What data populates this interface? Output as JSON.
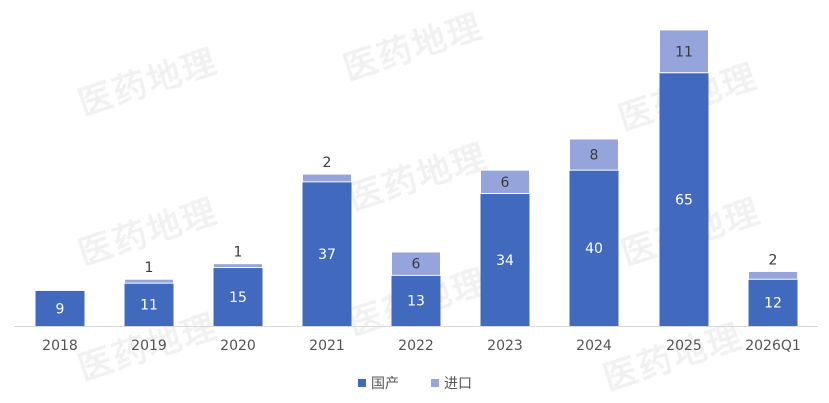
{
  "watermark": "医药地理",
  "chart_data": {
    "type": "bar",
    "stacked": true,
    "categories": [
      "2018",
      "2019",
      "2020",
      "2021",
      "2022",
      "2023",
      "2024",
      "2025",
      "2026Q1"
    ],
    "series": [
      {
        "name": "国产",
        "color": "#4169BE",
        "values": [
          9,
          11,
          15,
          37,
          13,
          34,
          40,
          65,
          12
        ]
      },
      {
        "name": "进口",
        "color": "#95A5DC",
        "values": [
          0,
          1,
          1,
          2,
          6,
          6,
          8,
          11,
          2
        ]
      }
    ],
    "ylim": [
      0,
      78
    ],
    "grid": false,
    "data_labels": true,
    "legend_position": "bottom"
  }
}
